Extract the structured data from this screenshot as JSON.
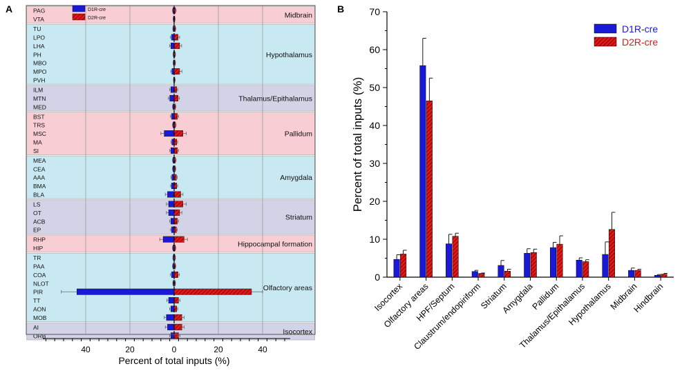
{
  "colors": {
    "d1r": "#1a1ad6",
    "d2r": "#e01818",
    "d2r_stripe": "#6a0000",
    "region_pink": "#f8cdd3",
    "region_blue": "#c8e8f2",
    "region_lavender": "#d2d3e6",
    "panel_b_d1r_label": "#1a1ad6",
    "panel_b_d2r_label": "#e01818"
  },
  "chart_data": [
    {
      "type": "bar",
      "orientation": "horizontal-mirrored",
      "panel_label": "A",
      "title": "",
      "xlabel": "Percent of total inputs (%)",
      "ylabel": "",
      "xlim": [
        -60,
        60
      ],
      "xticks": [
        40,
        20,
        0,
        20,
        40
      ],
      "legend": [
        "D1R-cre",
        "D2R-cre"
      ],
      "legend_placement": "top-left",
      "regions": [
        {
          "name": "Midbrain",
          "color": "pink",
          "areas": [
            {
              "label": "PAG",
              "d1r": 0.5,
              "d2r": 0.6,
              "d1r_err": 0.3,
              "d2r_err": 0.3
            },
            {
              "label": "VTA",
              "d1r": 0.3,
              "d2r": 0.3,
              "d1r_err": 0.2,
              "d2r_err": 0.2
            }
          ]
        },
        {
          "name": "Hypothalamus",
          "color": "blue",
          "areas": [
            {
              "label": "TU",
              "d1r": 0.4,
              "d2r": 0.5,
              "d1r_err": 0.2,
              "d2r_err": 0.3
            },
            {
              "label": "LPO",
              "d1r": 1.2,
              "d2r": 1.8,
              "d1r_err": 0.5,
              "d2r_err": 0.7
            },
            {
              "label": "LHA",
              "d1r": 1.5,
              "d2r": 2.5,
              "d1r_err": 0.6,
              "d2r_err": 0.9
            },
            {
              "label": "PH",
              "d1r": 0.3,
              "d2r": 0.4,
              "d1r_err": 0.2,
              "d2r_err": 0.2
            },
            {
              "label": "MBO",
              "d1r": 0.3,
              "d2r": 0.4,
              "d1r_err": 0.2,
              "d2r_err": 0.2
            },
            {
              "label": "MPO",
              "d1r": 1.0,
              "d2r": 2.5,
              "d1r_err": 0.5,
              "d2r_err": 1.0
            },
            {
              "label": "PVH",
              "d1r": 0.2,
              "d2r": 0.3,
              "d1r_err": 0.1,
              "d2r_err": 0.2
            }
          ]
        },
        {
          "name": "Thalamus/Epithalamus",
          "color": "lavender",
          "areas": [
            {
              "label": "ILM",
              "d1r": 1.5,
              "d2r": 1.2,
              "d1r_err": 0.5,
              "d2r_err": 0.4
            },
            {
              "label": "MTN",
              "d1r": 2.0,
              "d2r": 1.8,
              "d1r_err": 0.6,
              "d2r_err": 0.6
            },
            {
              "label": "MED",
              "d1r": 0.5,
              "d2r": 0.5,
              "d1r_err": 0.3,
              "d2r_err": 0.3
            }
          ]
        },
        {
          "name": "Pallidum",
          "color": "pink",
          "areas": [
            {
              "label": "BST",
              "d1r": 1.2,
              "d2r": 1.5,
              "d1r_err": 0.5,
              "d2r_err": 0.5
            },
            {
              "label": "TRS",
              "d1r": 0.5,
              "d2r": 0.6,
              "d1r_err": 0.3,
              "d2r_err": 0.3
            },
            {
              "label": "MSC",
              "d1r": 4.5,
              "d2r": 4.0,
              "d1r_err": 1.5,
              "d2r_err": 1.5
            },
            {
              "label": "MA",
              "d1r": 1.0,
              "d2r": 1.2,
              "d1r_err": 0.4,
              "d2r_err": 0.4
            },
            {
              "label": "SI",
              "d1r": 1.5,
              "d2r": 1.5,
              "d1r_err": 0.5,
              "d2r_err": 0.5
            }
          ]
        },
        {
          "name": "Amygdala",
          "color": "blue",
          "areas": [
            {
              "label": "MEA",
              "d1r": 0.5,
              "d2r": 0.6,
              "d1r_err": 0.3,
              "d2r_err": 0.3
            },
            {
              "label": "CEA",
              "d1r": 0.5,
              "d2r": 0.5,
              "d1r_err": 0.3,
              "d2r_err": 0.3
            },
            {
              "label": "AAA",
              "d1r": 1.0,
              "d2r": 1.0,
              "d1r_err": 0.4,
              "d2r_err": 0.4
            },
            {
              "label": "BMA",
              "d1r": 1.2,
              "d2r": 1.2,
              "d1r_err": 0.4,
              "d2r_err": 0.4
            },
            {
              "label": "BLA",
              "d1r": 3.0,
              "d2r": 3.0,
              "d1r_err": 1.0,
              "d2r_err": 1.0
            }
          ]
        },
        {
          "name": "Striatum",
          "color": "lavender",
          "areas": [
            {
              "label": "LS",
              "d1r": 2.5,
              "d2r": 4.0,
              "d1r_err": 1.0,
              "d2r_err": 1.5
            },
            {
              "label": "OT",
              "d1r": 2.5,
              "d2r": 2.5,
              "d1r_err": 1.0,
              "d2r_err": 1.0
            },
            {
              "label": "ACB",
              "d1r": 1.5,
              "d2r": 1.5,
              "d1r_err": 0.5,
              "d2r_err": 0.5
            },
            {
              "label": "EP",
              "d1r": 1.2,
              "d2r": 1.0,
              "d1r_err": 0.4,
              "d2r_err": 0.4
            }
          ]
        },
        {
          "name": "Hippocampal formation",
          "color": "pink",
          "areas": [
            {
              "label": "RHP",
              "d1r": 5.0,
              "d2r": 4.5,
              "d1r_err": 1.5,
              "d2r_err": 1.5
            },
            {
              "label": "HIP",
              "d1r": 0.5,
              "d2r": 0.5,
              "d1r_err": 0.3,
              "d2r_err": 0.3
            }
          ]
        },
        {
          "name": "Olfactory areas",
          "color": "blue",
          "areas": [
            {
              "label": "TR",
              "d1r": 0.4,
              "d2r": 0.4,
              "d1r_err": 0.2,
              "d2r_err": 0.2
            },
            {
              "label": "PAA",
              "d1r": 0.5,
              "d2r": 0.5,
              "d1r_err": 0.3,
              "d2r_err": 0.3
            },
            {
              "label": "COA",
              "d1r": 1.2,
              "d2r": 1.8,
              "d1r_err": 0.5,
              "d2r_err": 0.6
            },
            {
              "label": "NLOT",
              "d1r": 0.4,
              "d2r": 0.4,
              "d1r_err": 0.2,
              "d2r_err": 0.2
            },
            {
              "label": "PIR",
              "d1r": 44.0,
              "d2r": 35.0,
              "d1r_err": 7.0,
              "d2r_err": 5.0
            },
            {
              "label": "TT",
              "d1r": 2.5,
              "d2r": 2.0,
              "d1r_err": 0.8,
              "d2r_err": 0.7
            },
            {
              "label": "AON",
              "d1r": 1.5,
              "d2r": 1.2,
              "d1r_err": 0.5,
              "d2r_err": 0.4
            },
            {
              "label": "MOB",
              "d1r": 3.5,
              "d2r": 3.5,
              "d1r_err": 1.0,
              "d2r_err": 1.0
            }
          ]
        },
        {
          "name": "Isocortex",
          "color": "lavender",
          "areas": [
            {
              "label": "AI",
              "d1r": 3.0,
              "d2r": 3.5,
              "d1r_err": 1.0,
              "d2r_err": 1.0
            },
            {
              "label": "ORB",
              "d1r": 1.5,
              "d2r": 2.0,
              "d1r_err": 0.5,
              "d2r_err": 0.6
            }
          ]
        }
      ]
    },
    {
      "type": "bar",
      "panel_label": "B",
      "title": "",
      "xlabel": "",
      "ylabel": "Percent of total inputs (%)",
      "ylim": [
        0,
        70
      ],
      "yticks": [
        0,
        10,
        20,
        30,
        40,
        50,
        60,
        70
      ],
      "legend": [
        "D1R-cre",
        "D2R-cre"
      ],
      "legend_placement": "top-right",
      "categories": [
        "Isocortex",
        "Olfactory areas",
        "HPF/Septum",
        "Claustrum/endopiriform",
        "Striatum",
        "Amygdala",
        "Pallidum",
        "Thalamus/Epithalamus",
        "Hypothalamus",
        "Midbrain",
        "Hindbrain"
      ],
      "series": [
        {
          "name": "D1R-cre",
          "values": [
            4.7,
            55.8,
            8.8,
            1.5,
            3.1,
            6.3,
            7.8,
            4.5,
            6.0,
            1.8,
            0.5
          ],
          "errors": [
            1.2,
            7.2,
            2.5,
            0.3,
            1.3,
            1.2,
            1.4,
            0.6,
            3.3,
            0.6,
            0.2
          ]
        },
        {
          "name": "D2R-cre",
          "values": [
            6.1,
            46.5,
            10.8,
            1.0,
            1.6,
            6.5,
            8.7,
            4.1,
            12.6,
            1.8,
            0.8
          ],
          "errors": [
            1.0,
            6.0,
            0.8,
            0.1,
            0.5,
            0.9,
            2.2,
            0.5,
            4.5,
            0.3,
            0.2
          ]
        }
      ]
    }
  ]
}
